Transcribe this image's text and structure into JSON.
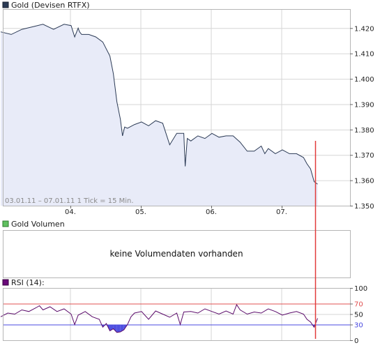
{
  "colors": {
    "price_line": "#2b3a55",
    "price_fill": "#e8ebf8",
    "panel_border": "#b5b5b5",
    "grid": "#d6d6d6",
    "cursor": "#e23b3b",
    "rsi_line": "#5a0a6a",
    "rsi_fill": "#5050e0",
    "rsi_70": "#e05050",
    "rsi_30": "#4a4ae0",
    "volume_legend": "#60c060"
  },
  "price_panel": {
    "legend": "Gold (Devisen RTFX)",
    "footnote": "03.01.11 – 07.01.11   1 Tick = 15 Min."
  },
  "volume_panel": {
    "legend": "Gold Volumen",
    "message": "keine Volumendaten vorhanden"
  },
  "rsi_panel": {
    "legend": "RSI (14):"
  },
  "chart_data": [
    {
      "type": "area",
      "series": [
        {
          "name": "Gold (Devisen RTFX)",
          "x": [
            0.0,
            0.15,
            0.3,
            0.45,
            0.6,
            0.75,
            0.9,
            1.0,
            1.05,
            1.1,
            1.12,
            1.15,
            1.25,
            1.35,
            1.45,
            1.55,
            1.6,
            1.65,
            1.7,
            1.73,
            1.76,
            1.8,
            1.9,
            2.0,
            2.1,
            2.2,
            2.3,
            2.4,
            2.5,
            2.6,
            2.62,
            2.65,
            2.7,
            2.8,
            2.9,
            3.0,
            3.1,
            3.2,
            3.3,
            3.4,
            3.5,
            3.6,
            3.7,
            3.75,
            3.8,
            3.9,
            4.0,
            4.1,
            4.2,
            4.3,
            4.35,
            4.4,
            4.45,
            4.5
          ],
          "values": [
            1.4185,
            1.4175,
            1.4195,
            1.4205,
            1.4215,
            1.4195,
            1.4215,
            1.421,
            1.4165,
            1.42,
            1.4185,
            1.4175,
            1.4175,
            1.4165,
            1.4145,
            1.409,
            1.402,
            1.391,
            1.384,
            1.3775,
            1.381,
            1.3805,
            1.382,
            1.383,
            1.3815,
            1.3835,
            1.3825,
            1.374,
            1.3785,
            1.3785,
            1.3655,
            1.3765,
            1.3755,
            1.3775,
            1.3765,
            1.3785,
            1.377,
            1.3775,
            1.3775,
            1.375,
            1.3715,
            1.3715,
            1.3735,
            1.3705,
            1.3725,
            1.3705,
            1.372,
            1.3705,
            1.3705,
            1.369,
            1.3665,
            1.3645,
            1.3595,
            1.3585
          ]
        }
      ],
      "x_ticks": [
        "04.",
        "05.",
        "06.",
        "07."
      ],
      "y_ticks": [
        "1.420",
        "1.410",
        "1.400",
        "1.390",
        "1.380",
        "1.370",
        "1.360",
        "1.350"
      ],
      "ylim": [
        1.35,
        1.4275
      ],
      "grid": true
    },
    {
      "type": "line",
      "series": [
        {
          "name": "RSI (14):",
          "x": [
            0.0,
            0.1,
            0.2,
            0.3,
            0.4,
            0.5,
            0.55,
            0.6,
            0.7,
            0.8,
            0.9,
            1.0,
            1.05,
            1.1,
            1.2,
            1.3,
            1.4,
            1.45,
            1.5,
            1.55,
            1.6,
            1.65,
            1.7,
            1.75,
            1.8,
            1.85,
            1.9,
            2.0,
            2.1,
            2.2,
            2.3,
            2.4,
            2.5,
            2.55,
            2.6,
            2.7,
            2.8,
            2.9,
            3.0,
            3.1,
            3.2,
            3.3,
            3.35,
            3.4,
            3.5,
            3.6,
            3.7,
            3.8,
            3.9,
            4.0,
            4.1,
            4.2,
            4.3,
            4.35,
            4.4,
            4.45,
            4.5
          ],
          "values": [
            45,
            52,
            50,
            58,
            55,
            62,
            66,
            58,
            64,
            55,
            60,
            50,
            30,
            48,
            55,
            45,
            40,
            25,
            32,
            18,
            22,
            15,
            16,
            20,
            30,
            45,
            52,
            55,
            40,
            56,
            50,
            44,
            52,
            30,
            54,
            55,
            52,
            60,
            55,
            50,
            56,
            50,
            68,
            58,
            50,
            54,
            52,
            60,
            55,
            48,
            52,
            55,
            50,
            40,
            35,
            25,
            42
          ]
        }
      ],
      "reference_lines": [
        70,
        30
      ],
      "y_ticks": [
        "100",
        "70",
        "50",
        "30",
        "0"
      ],
      "ylim": [
        0,
        100
      ],
      "grid": true
    }
  ]
}
